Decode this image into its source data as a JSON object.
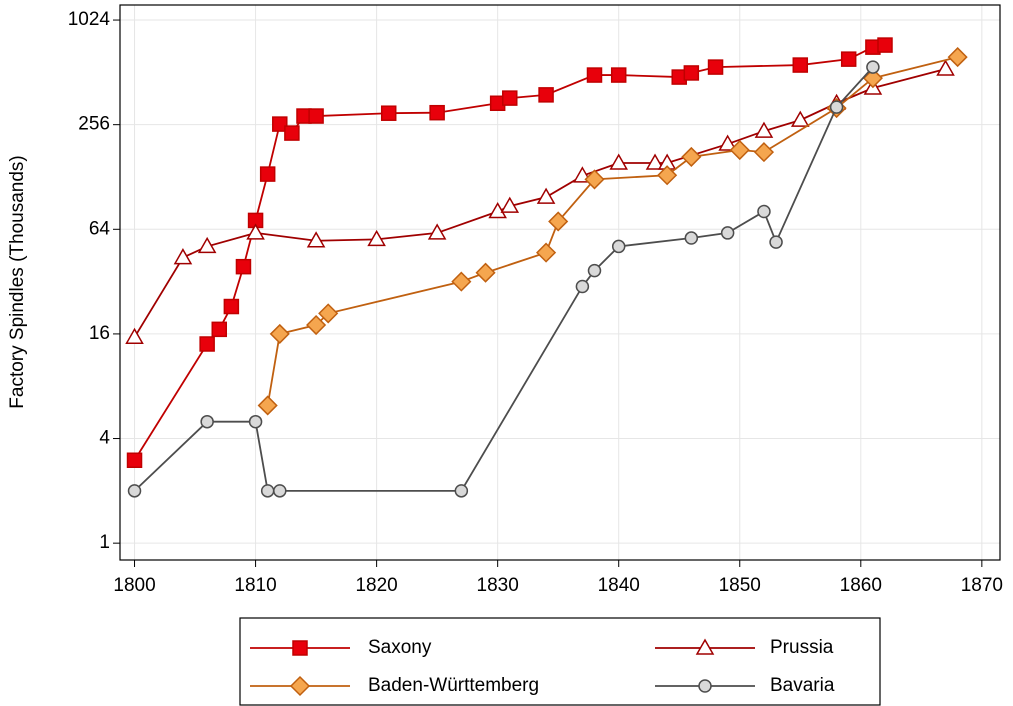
{
  "chart_data": {
    "type": "line",
    "ylabel": "Factory Spindles (Thousands)",
    "xlim": [
      1798.8,
      1871.5
    ],
    "xticks": [
      1800,
      1810,
      1820,
      1830,
      1840,
      1850,
      1860,
      1870
    ],
    "ylim": [
      0.8,
      1250
    ],
    "yticks": [
      1,
      4,
      16,
      64,
      256,
      1024
    ],
    "ylog": true,
    "log_base": 2,
    "grid": true,
    "legend": "bottom",
    "series": [
      {
        "name": "Saxony",
        "color": "#c00000",
        "marker": "square",
        "marker_fill": "#e8000b",
        "x": [
          1800,
          1806,
          1807,
          1808,
          1809,
          1810,
          1811,
          1812,
          1813,
          1814,
          1815,
          1821,
          1825,
          1830,
          1831,
          1834,
          1838,
          1840,
          1845,
          1846,
          1848,
          1855,
          1859,
          1861,
          1862
        ],
        "values": [
          3,
          14,
          17,
          23,
          39,
          72,
          133,
          258,
          229,
          287,
          287,
          298,
          300,
          340,
          364,
          380,
          494,
          494,
          481,
          508,
          549,
          564,
          610,
          715,
          735
        ]
      },
      {
        "name": "Prussia",
        "color": "#a00000",
        "marker": "triangle",
        "marker_fill": "#ffffff",
        "x": [
          1800,
          1804,
          1806,
          1810,
          1815,
          1820,
          1825,
          1830,
          1831,
          1834,
          1837,
          1840,
          1843,
          1844,
          1849,
          1852,
          1855,
          1858,
          1861,
          1867
        ],
        "values": [
          15.3,
          44,
          51,
          61,
          55,
          56,
          61,
          81,
          87,
          98,
          130,
          154,
          154,
          154,
          198,
          235,
          272,
          340,
          416,
          535
        ]
      },
      {
        "name": "Baden-Württemberg",
        "color": "#c06010",
        "marker": "diamond",
        "marker_fill": "#f5a64f",
        "x": [
          1811,
          1812,
          1815,
          1816,
          1827,
          1829,
          1834,
          1835,
          1838,
          1844,
          1846,
          1850,
          1852,
          1858,
          1861,
          1868
        ],
        "values": [
          6.2,
          16,
          18,
          21,
          32,
          36,
          47,
          71,
          124,
          131,
          167,
          183,
          178,
          319,
          474,
          627
        ]
      },
      {
        "name": "Bavaria",
        "color": "#4d4d4d",
        "marker": "circle",
        "marker_fill": "#d9d9d9",
        "x": [
          1800,
          1806,
          1810,
          1811,
          1812,
          1827,
          1837,
          1838,
          1840,
          1846,
          1849,
          1852,
          1853,
          1858,
          1861
        ],
        "values": [
          2,
          5,
          5,
          2,
          2,
          2,
          30,
          37,
          51,
          57,
          61,
          81,
          54,
          323,
          549
        ]
      }
    ]
  }
}
